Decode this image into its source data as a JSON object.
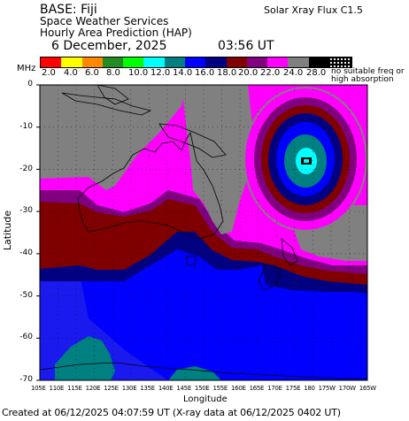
{
  "header": {
    "base": "BASE: Fiji",
    "product": "Solar Xray Flux C1.5",
    "line2": "Space Weather Services",
    "line3": "Hourly Area Prediction (HAP)",
    "date": "6 December, 2025",
    "time": "03:56 UT"
  },
  "legend": {
    "unit": "MHz",
    "colors": [
      "#ff0000",
      "#ffff00",
      "#ff8800",
      "#228b22",
      "#00ff00",
      "#00ffff",
      "#008080",
      "#0000ff",
      "#000080",
      "#800000",
      "#800080",
      "#ff00ff",
      "#808080",
      "#000000"
    ],
    "labels": [
      "2.0",
      "4.0",
      "6.0",
      "8.0",
      "10.0",
      "12.0",
      "14.0",
      "16.0",
      "18.0",
      "20.0",
      "22.0",
      "24.0",
      "28.0"
    ],
    "note_line1": "no suitable freq or",
    "note_line2": "high absorption"
  },
  "axes": {
    "ylabel": "Latitude",
    "xlabel": "Longitude",
    "yticks": [
      "0",
      "-10",
      "-20",
      "-30",
      "-40",
      "-50",
      "-60",
      "-70"
    ],
    "xticks": [
      "105E",
      "110E",
      "115E",
      "120E",
      "125E",
      "130E",
      "135E",
      "140E",
      "145E",
      "150E",
      "155E",
      "160E",
      "165E",
      "170E",
      "175E",
      "180",
      "175W",
      "170W",
      "165W"
    ]
  },
  "footer": {
    "text": "Created at 06/12/2025 04:07:59 UT (X-ray data at 06/12/2025 0402 UT)"
  }
}
